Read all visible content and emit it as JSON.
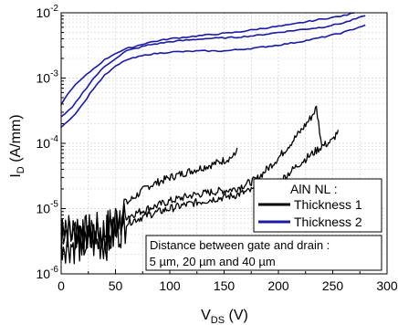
{
  "chart_data": {
    "type": "line",
    "title": "",
    "xlabel": {
      "main": "V",
      "sub": "DS",
      "unit": " (V)"
    },
    "ylabel": {
      "main": "I",
      "sub": "D",
      "unit": " (A/mm)"
    },
    "xlim": [
      0,
      300
    ],
    "ylim": [
      1e-06,
      0.01
    ],
    "yscale": "log",
    "grid": true,
    "x_ticks": [
      "0",
      "50",
      "100",
      "150",
      "200",
      "250",
      "300"
    ],
    "y_ticks": [
      {
        "base": "10",
        "exp": "-6"
      },
      {
        "base": "10",
        "exp": "-5"
      },
      {
        "base": "10",
        "exp": "-4"
      },
      {
        "base": "10",
        "exp": "-3"
      },
      {
        "base": "10",
        "exp": "-2"
      }
    ],
    "legend": {
      "position": "center-right",
      "title": "AlN NL :",
      "entries": [
        "Thickness 1",
        "Thickness 2"
      ]
    },
    "note": {
      "line1": "Distance between gate and drain :",
      "line2": " 5 µm, 20 µm and 40 µm"
    },
    "series": [
      {
        "name": "Thickness 1",
        "color": "#000000",
        "noisy": true,
        "x": [
          0,
          10,
          20,
          30,
          40,
          50,
          60,
          80,
          100,
          120,
          140,
          150,
          160,
          162
        ],
        "y": [
          5e-06,
          4.5e-06,
          4e-06,
          4.5e-06,
          4.5e-06,
          7e-06,
          1.2e-05,
          2.2e-05,
          3e-05,
          3.8e-05,
          4.8e-05,
          5.5e-05,
          6.5e-05,
          8.5e-05
        ]
      },
      {
        "name": "Thickness 1",
        "color": "#000000",
        "noisy": true,
        "x": [
          0,
          10,
          20,
          30,
          40,
          50,
          60,
          80,
          100,
          120,
          140,
          160,
          180,
          200,
          220,
          230,
          235,
          240
        ],
        "y": [
          4e-06,
          3.5e-06,
          3.5e-06,
          4e-06,
          4e-06,
          5e-06,
          7.5e-06,
          1e-05,
          1.3e-05,
          1.6e-05,
          1.8e-05,
          2e-05,
          2.8e-05,
          6e-05,
          0.00015,
          0.00025,
          0.00035,
          9e-05
        ]
      },
      {
        "name": "Thickness 1",
        "color": "#000000",
        "noisy": true,
        "x": [
          0,
          10,
          20,
          30,
          40,
          50,
          60,
          80,
          100,
          120,
          140,
          160,
          180,
          200,
          220,
          240,
          250,
          255
        ],
        "y": [
          3e-06,
          2.8e-06,
          2.8e-06,
          3e-06,
          3e-06,
          4e-06,
          6e-06,
          8e-06,
          1e-05,
          1.2e-05,
          1.4e-05,
          1.6e-05,
          2e-05,
          2.5e-05,
          5e-05,
          9e-05,
          0.00011,
          0.00016
        ]
      },
      {
        "name": "Thickness 2",
        "color": "#1a1aa6",
        "noisy": false,
        "x": [
          0,
          10,
          20,
          30,
          40,
          50,
          60,
          80,
          100,
          130,
          160,
          180,
          200,
          220,
          240,
          260,
          280
        ],
        "y": [
          0.00025,
          0.00035,
          0.0006,
          0.001,
          0.0015,
          0.002,
          0.0026,
          0.0032,
          0.0036,
          0.004,
          0.0042,
          0.0045,
          0.005,
          0.0055,
          0.006,
          0.007,
          0.009
        ]
      },
      {
        "name": "Thickness 2",
        "color": "#1a1aa6",
        "noisy": false,
        "x": [
          0,
          10,
          20,
          30,
          40,
          50,
          60,
          80,
          100,
          130,
          160,
          180,
          200,
          210,
          220,
          240,
          260,
          270
        ],
        "y": [
          0.0004,
          0.0007,
          0.001,
          0.0014,
          0.0019,
          0.0024,
          0.0028,
          0.0035,
          0.004,
          0.0045,
          0.005,
          0.0056,
          0.0062,
          0.0065,
          0.007,
          0.008,
          0.009,
          0.01
        ]
      },
      {
        "name": "Thickness 2",
        "color": "#1a1aa6",
        "noisy": false,
        "x": [
          0,
          10,
          20,
          30,
          40,
          50,
          60,
          80,
          100,
          130,
          150,
          160,
          180,
          200,
          220,
          240,
          260,
          280
        ],
        "y": [
          0.00018,
          0.00025,
          0.0004,
          0.0007,
          0.0011,
          0.0015,
          0.0019,
          0.0023,
          0.0025,
          0.0026,
          0.0026,
          0.0027,
          0.0029,
          0.0032,
          0.0036,
          0.0042,
          0.005,
          0.0065
        ]
      }
    ]
  }
}
